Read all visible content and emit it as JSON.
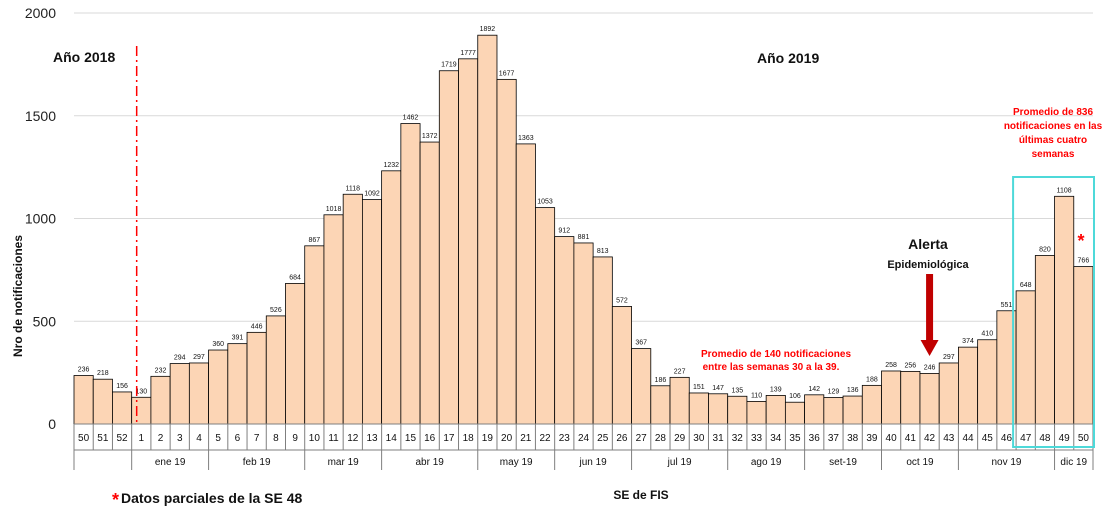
{
  "chart_data": {
    "type": "bar",
    "ylabel": "Nro de notificaciones",
    "xlabel": "SE de FIS",
    "ylim": [
      0,
      2000
    ],
    "yticks": [
      "0",
      "500",
      "1000",
      "1500",
      "2000"
    ],
    "grid": true,
    "bar_color": "#fcd5b5",
    "categories": [
      "50",
      "51",
      "52",
      "1",
      "2",
      "3",
      "4",
      "5",
      "6",
      "7",
      "8",
      "9",
      "10",
      "11",
      "12",
      "13",
      "14",
      "15",
      "16",
      "17",
      "18",
      "19",
      "20",
      "21",
      "22",
      "23",
      "24",
      "25",
      "26",
      "27",
      "28",
      "29",
      "30",
      "31",
      "32",
      "33",
      "34",
      "35",
      "36",
      "37",
      "38",
      "39",
      "40",
      "41",
      "42",
      "43",
      "44",
      "45",
      "46",
      "47",
      "48",
      "49",
      "50"
    ],
    "values": [
      236,
      218,
      156,
      130,
      232,
      294,
      297,
      360,
      391,
      446,
      526,
      684,
      867,
      1018,
      1118,
      1092,
      1232,
      1462,
      1372,
      1719,
      1777,
      1892,
      1677,
      1363,
      1053,
      912,
      881,
      813,
      572,
      367,
      186,
      227,
      151,
      147,
      135,
      110,
      139,
      106,
      142,
      129,
      136,
      188,
      258,
      256,
      246,
      297,
      374,
      410,
      551,
      648,
      820,
      1108,
      766
    ],
    "data_labels": [
      "236",
      "218",
      "156",
      "130",
      "232",
      "294",
      "297",
      "360",
      "391",
      "446",
      "526",
      "684",
      "867",
      "1018",
      "1118",
      "1092",
      "1232",
      "1462",
      "1372",
      "1719",
      "1777",
      "1892",
      "1677",
      "1363",
      "1053",
      "912",
      "881",
      "813",
      "572",
      "367",
      "186",
      "227",
      "151",
      "147",
      "135",
      "110",
      "139",
      "106",
      "142",
      "129",
      "136",
      "188",
      "258",
      "256",
      "246",
      "297",
      "374",
      "410",
      "551",
      "648",
      "820",
      "1108",
      "766"
    ],
    "months": [
      {
        "label": "ene 19",
        "start": 3,
        "end": 6
      },
      {
        "label": "feb 19",
        "start": 7,
        "end": 11
      },
      {
        "label": "mar 19",
        "start": 12,
        "end": 15
      },
      {
        "label": "abr 19",
        "start": 16,
        "end": 20
      },
      {
        "label": "may 19",
        "start": 21,
        "end": 24
      },
      {
        "label": "jun 19",
        "start": 25,
        "end": 28
      },
      {
        "label": "jul 19",
        "start": 29,
        "end": 33
      },
      {
        "label": "ago 19",
        "start": 34,
        "end": 37
      },
      {
        "label": "set-19",
        "start": 38,
        "end": 41
      },
      {
        "label": "oct 19",
        "start": 42,
        "end": 45
      },
      {
        "label": "nov 19",
        "start": 46,
        "end": 50
      },
      {
        "label": "dic 19",
        "start": 51,
        "end": 52
      }
    ],
    "annotations": {
      "year_2018": "Año 2018",
      "year_2019": "Año 2019",
      "note_weeks_30_39_line1": "Promedio de  140 notificaciones",
      "note_weeks_30_39_line2": "entre las semanas 30 a la 39.",
      "alert_line1": "Alerta",
      "alert_line2": "Epidemiológica",
      "note_last4_line1": "Promedio de  836",
      "note_last4_line2": "notificaciones en las",
      "note_last4_line3": "últimas cuatro",
      "note_last4_line4": "semanas",
      "star": "*",
      "footnote_star": "*",
      "footnote_text": "Datos parciales de la SE 48"
    },
    "colors": {
      "year_divider": "#ff0000",
      "alert_arrow": "#c00000",
      "highlight_box": "#4dd9d9",
      "note_text": "#ff0000"
    }
  }
}
